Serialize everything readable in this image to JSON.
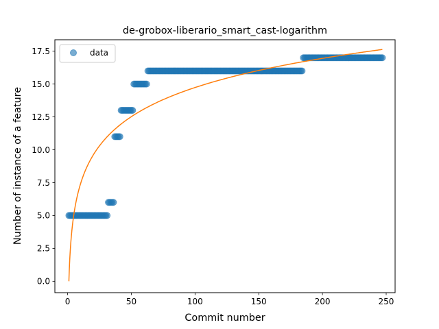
{
  "chart_data": {
    "type": "scatter",
    "title": "de-grobox-liberario_smart_cast-logarithm",
    "xlabel": "Commit number",
    "ylabel": "Number of instance of a feature",
    "xlim": [
      -10,
      257
    ],
    "ylim": [
      -0.87,
      18.37
    ],
    "xticks": [
      0,
      50,
      100,
      150,
      200,
      250
    ],
    "yticks": [
      0.0,
      2.5,
      5.0,
      7.5,
      10.0,
      12.5,
      15.0,
      17.5
    ],
    "xtick_labels": [
      "0",
      "50",
      "100",
      "150",
      "200",
      "250"
    ],
    "ytick_labels": [
      "0.0",
      "2.5",
      "5.0",
      "7.5",
      "10.0",
      "12.5",
      "15.0",
      "17.5"
    ],
    "grid": false,
    "legend": {
      "position": "top-left",
      "entries": [
        "data"
      ]
    },
    "series": [
      {
        "name": "data",
        "kind": "scatter",
        "color": "#1f77b4",
        "alpha": 0.6,
        "segments": [
          {
            "x_start": 1,
            "x_end": 31,
            "y": 5
          },
          {
            "x_start": 32,
            "x_end": 36,
            "y": 6
          },
          {
            "x_start": 37,
            "x_end": 41,
            "y": 11
          },
          {
            "x_start": 42,
            "x_end": 51,
            "y": 13
          },
          {
            "x_start": 52,
            "x_end": 62,
            "y": 15
          },
          {
            "x_start": 63,
            "x_end": 184,
            "y": 16
          },
          {
            "x_start": 185,
            "x_end": 247,
            "y": 17
          }
        ]
      },
      {
        "kind": "line",
        "color": "#ff7f0e",
        "model": "a*ln(x)+b",
        "a": 3.2,
        "b": 0.0,
        "x_range": [
          1,
          247
        ]
      }
    ]
  }
}
